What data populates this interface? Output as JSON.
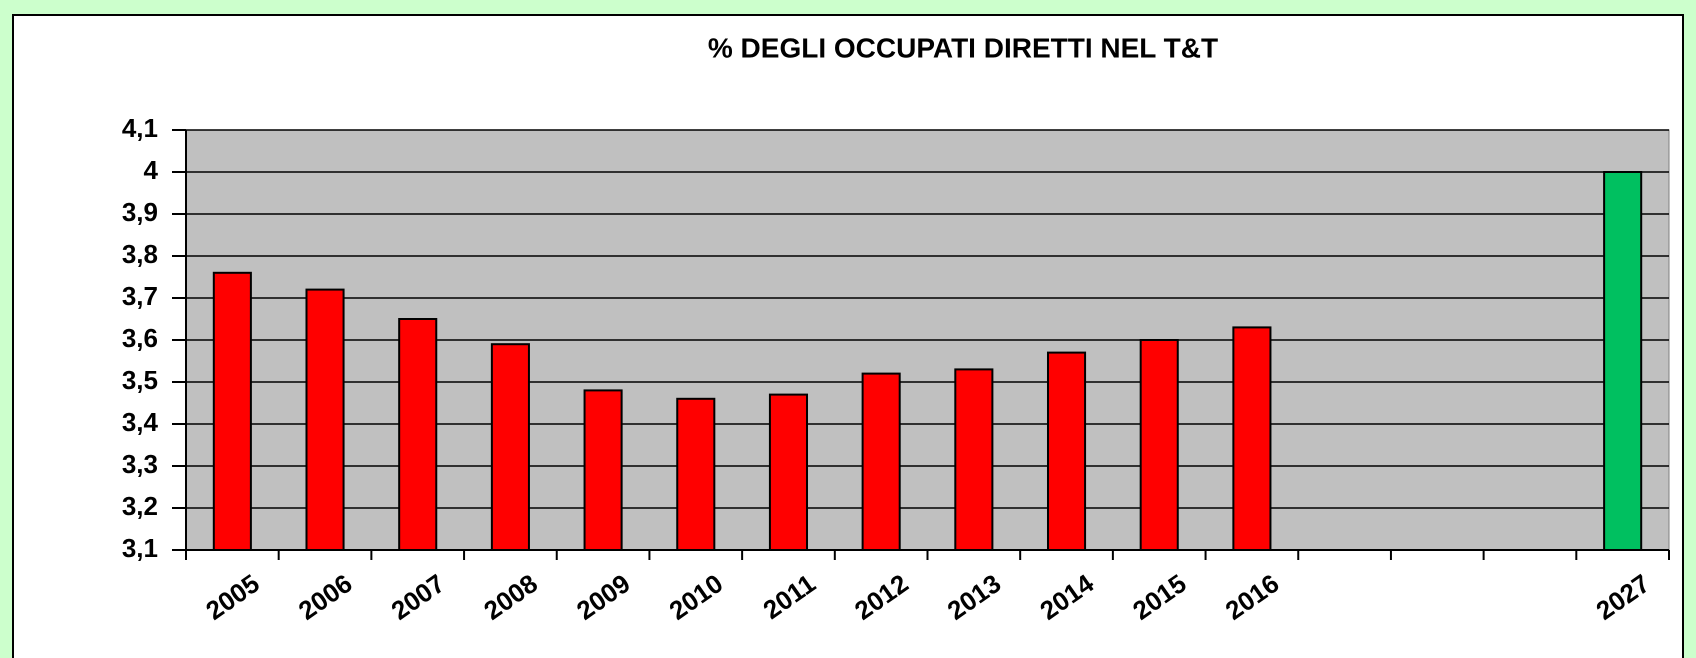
{
  "chart_data": {
    "type": "bar",
    "title": "% DEGLI OCCUPATI DIRETTI NEL T&T",
    "categories": [
      "2005",
      "2006",
      "2007",
      "2008",
      "2009",
      "2010",
      "2011",
      "2012",
      "2013",
      "2014",
      "2015",
      "2016",
      null,
      null,
      null,
      "2027"
    ],
    "values": [
      3.76,
      3.72,
      3.65,
      3.59,
      3.48,
      3.46,
      3.47,
      3.52,
      3.53,
      3.57,
      3.6,
      3.63,
      null,
      null,
      null,
      4.0
    ],
    "colors": [
      "#ff0000",
      "#ff0000",
      "#ff0000",
      "#ff0000",
      "#ff0000",
      "#ff0000",
      "#ff0000",
      "#ff0000",
      "#ff0000",
      "#ff0000",
      "#ff0000",
      "#ff0000",
      null,
      null,
      null,
      "#00c060"
    ],
    "ylim": [
      3.1,
      4.1
    ],
    "yticks": [
      {
        "value": 3.1,
        "label": "3,1"
      },
      {
        "value": 3.2,
        "label": "3,2"
      },
      {
        "value": 3.3,
        "label": "3,3"
      },
      {
        "value": 3.4,
        "label": "3,4"
      },
      {
        "value": 3.5,
        "label": "3,5"
      },
      {
        "value": 3.6,
        "label": "3,6"
      },
      {
        "value": 3.7,
        "label": "3,7"
      },
      {
        "value": 3.8,
        "label": "3,8"
      },
      {
        "value": 3.9,
        "label": "3,9"
      },
      4,
      {
        "value": 4.1,
        "label": "4,1"
      }
    ],
    "grid": true
  }
}
